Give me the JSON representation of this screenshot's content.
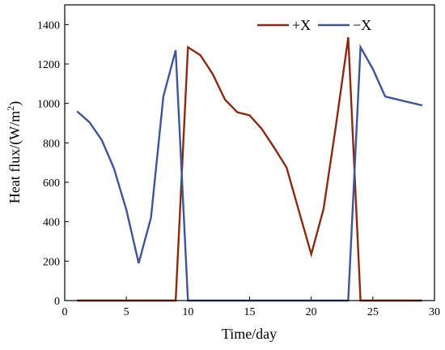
{
  "chart_data": {
    "type": "line",
    "xlabel": "Time/day",
    "ylabel_main": "Heat flux/(W/m",
    "ylabel_sup": "2",
    "ylabel_tail": ")",
    "xlim": [
      0,
      30
    ],
    "ylim": [
      0,
      1500
    ],
    "xticks": [
      0,
      5,
      10,
      15,
      20,
      25,
      30
    ],
    "yticks": [
      0,
      200,
      400,
      600,
      800,
      1000,
      1200,
      1400
    ],
    "grid": false,
    "legend_position": "top-right",
    "series": [
      {
        "name": "+X",
        "color": "#8b2a10",
        "x": [
          1,
          2,
          3,
          4,
          5,
          6,
          7,
          8,
          9,
          10,
          11,
          12,
          13,
          14,
          15,
          16,
          17,
          18,
          19,
          20,
          21,
          22,
          23,
          24,
          25,
          26,
          27,
          28,
          29
        ],
        "y": [
          0,
          0,
          0,
          0,
          0,
          0,
          0,
          0,
          0,
          1285,
          1245,
          1150,
          1020,
          955,
          940,
          870,
          775,
          675,
          455,
          235,
          465,
          885,
          1335,
          0,
          0,
          0,
          0,
          0,
          0
        ]
      },
      {
        "name": "−X",
        "color": "#3e5597",
        "x": [
          1,
          2,
          3,
          4,
          5,
          6,
          7,
          8,
          9,
          10,
          11,
          12,
          13,
          14,
          15,
          16,
          17,
          18,
          19,
          20,
          21,
          22,
          23,
          24,
          25,
          26,
          27,
          28,
          29
        ],
        "y": [
          960,
          905,
          815,
          670,
          460,
          190,
          420,
          1035,
          1270,
          0,
          0,
          0,
          0,
          0,
          0,
          0,
          0,
          0,
          0,
          0,
          0,
          0,
          0,
          1285,
          1175,
          1035,
          1020,
          1005,
          990
        ]
      }
    ]
  }
}
